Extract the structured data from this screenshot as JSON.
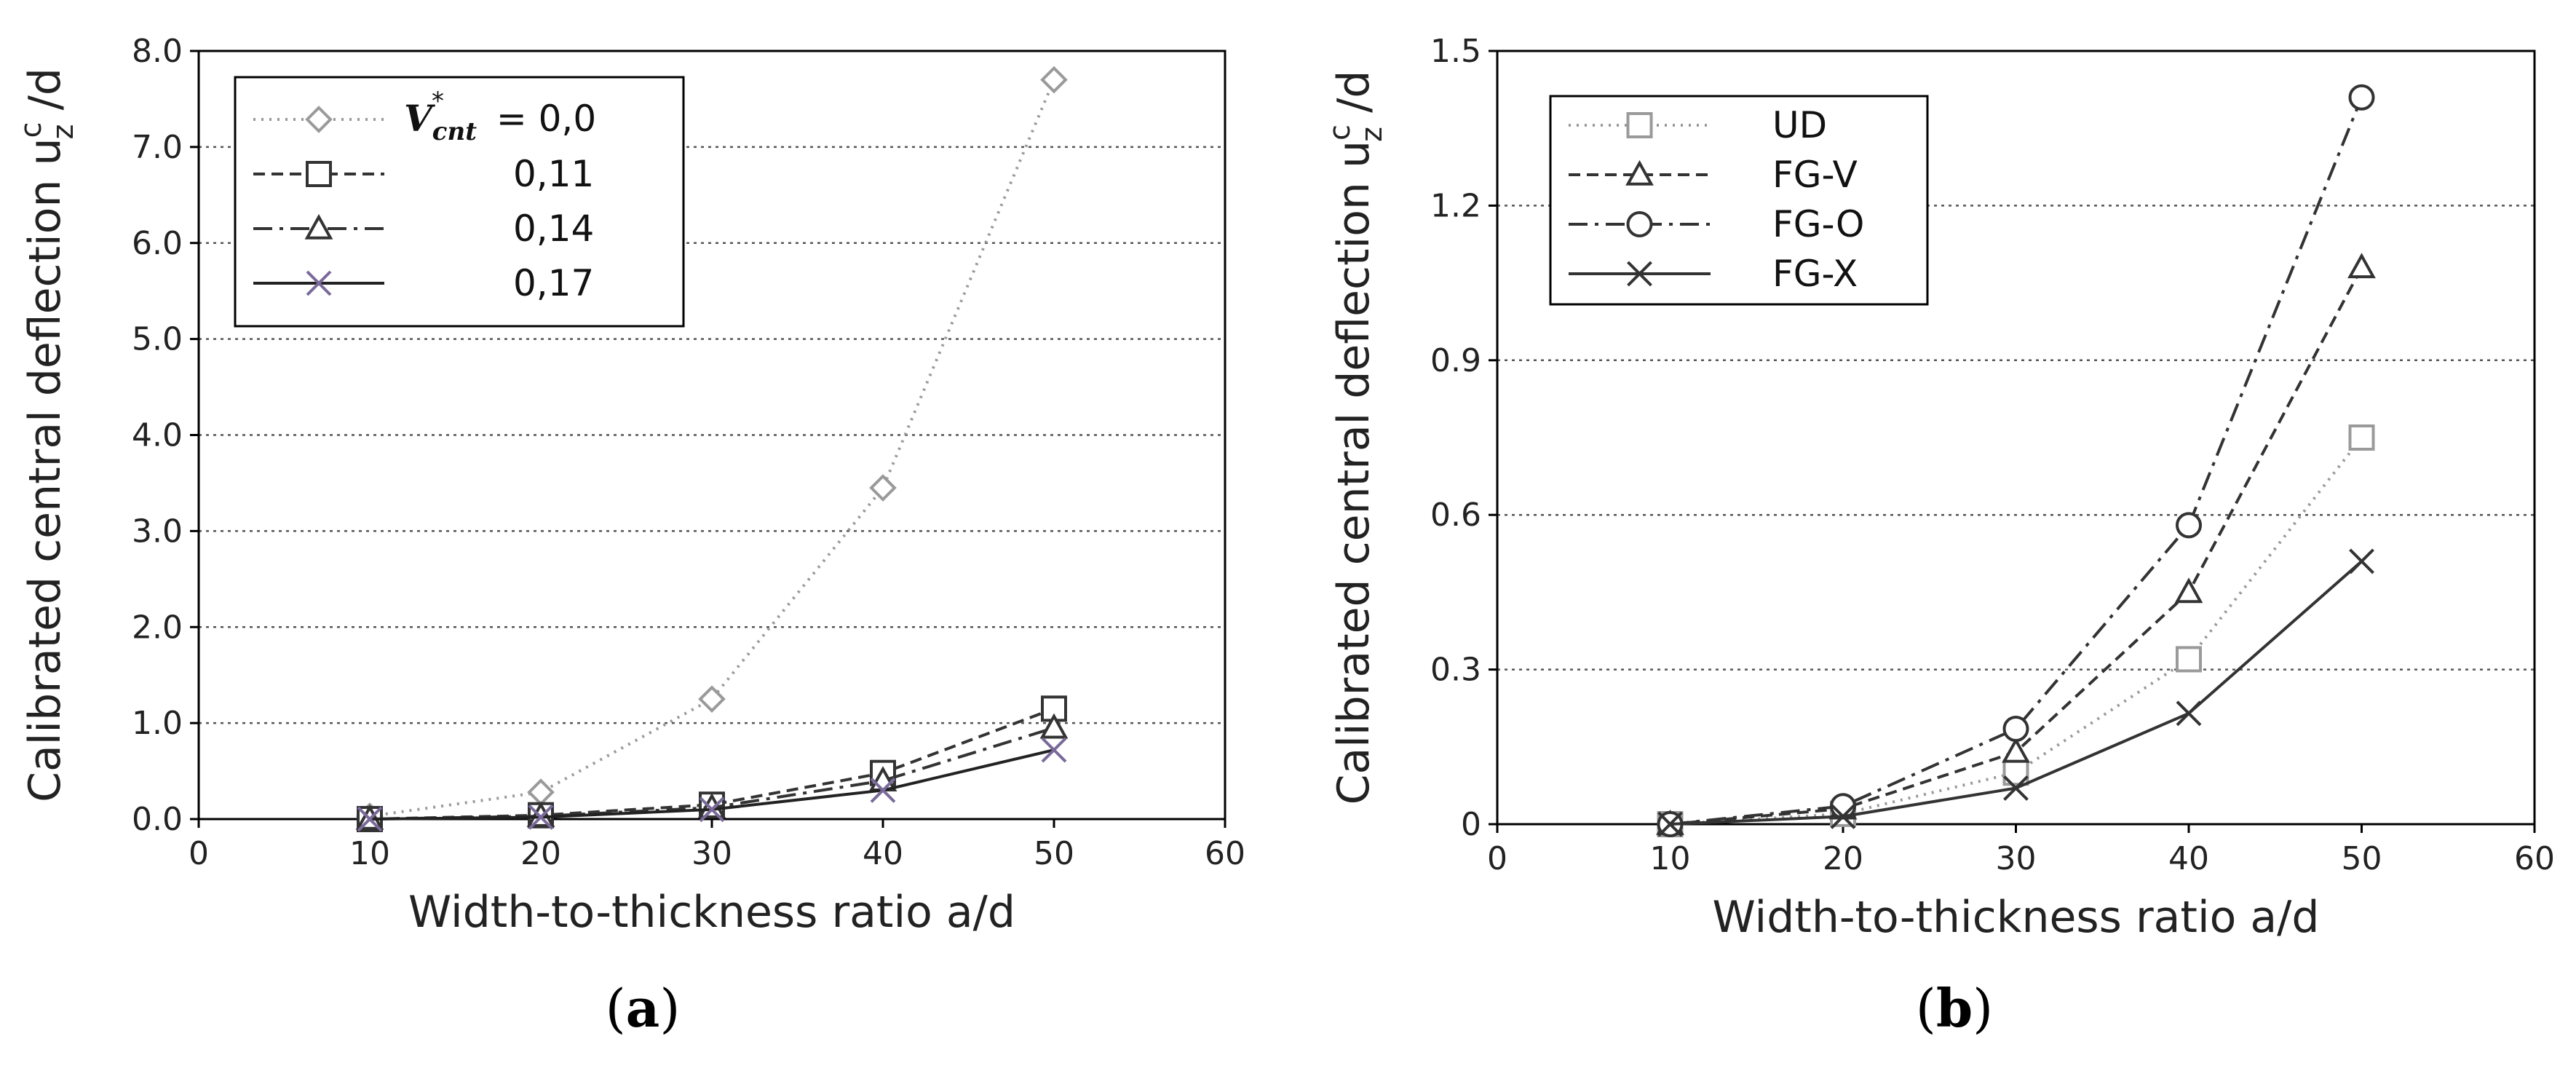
{
  "chart_data": [
    {
      "type": "line",
      "panel": "a",
      "xlabel": "Width-to-thickness ratio  a/d",
      "ylabel": "Calibrated central deflection",
      "ylabel_math": "u",
      "ylabel_sup": "c",
      "ylabel_sub": "z",
      "ylabel_tail": " /d",
      "xlim": [
        0,
        60
      ],
      "ylim": [
        0,
        8
      ],
      "xticks": [
        0,
        10,
        20,
        30,
        40,
        50,
        60
      ],
      "yticks": [
        0,
        1,
        2,
        3,
        4,
        5,
        6,
        7,
        8
      ],
      "ytick_labels": [
        "0.0",
        "1.0",
        "2.0",
        "3.0",
        "4.0",
        "5.0",
        "6.0",
        "7.0",
        "8.0"
      ],
      "grid": "horizontal",
      "legend_position": "top-left",
      "legend_var": "V",
      "legend_var_sub": "cnt",
      "legend_var_sup": "*",
      "x": [
        10,
        20,
        30,
        40,
        50
      ],
      "series": [
        {
          "name": "= 0,0",
          "marker": "diamond",
          "dash": "dotted",
          "color": "#9a9a9a",
          "values": [
            0.03,
            0.28,
            1.25,
            3.45,
            7.7
          ]
        },
        {
          "name": "0,11",
          "marker": "square",
          "dash": "dashed",
          "color": "#333333",
          "values": [
            0.0,
            0.04,
            0.15,
            0.48,
            1.15
          ]
        },
        {
          "name": "0,14",
          "marker": "triangle",
          "dash": "dashdot",
          "color": "#333333",
          "values": [
            0.0,
            0.03,
            0.12,
            0.4,
            0.95
          ]
        },
        {
          "name": "0,17",
          "marker": "x",
          "dash": "solid",
          "color": "#222222",
          "marker_color": "#7a6a9a",
          "values": [
            0.0,
            0.02,
            0.1,
            0.3,
            0.72
          ]
        }
      ]
    },
    {
      "type": "line",
      "panel": "b",
      "xlabel": "Width-to-thickness ratio  a/d",
      "ylabel": "Calibrated central deflection",
      "ylabel_math": "u",
      "ylabel_sup": "c",
      "ylabel_sub": "z",
      "ylabel_tail": " /d",
      "xlim": [
        0,
        60
      ],
      "ylim": [
        0,
        1.5
      ],
      "xticks": [
        0,
        10,
        20,
        30,
        40,
        50,
        60
      ],
      "yticks": [
        0,
        0.3,
        0.6,
        0.9,
        1.2,
        1.5
      ],
      "ytick_labels": [
        "0",
        "0.3",
        "0.6",
        "0.9",
        "1.2",
        "1.5"
      ],
      "grid": "horizontal",
      "legend_position": "top-left",
      "x": [
        10,
        20,
        30,
        40,
        50
      ],
      "series": [
        {
          "name": "UD",
          "marker": "square",
          "dash": "dotted",
          "color": "#9a9a9a",
          "values": [
            0.0,
            0.02,
            0.1,
            0.32,
            0.75
          ]
        },
        {
          "name": "FG-V",
          "marker": "triangle",
          "dash": "dashed",
          "color": "#333333",
          "values": [
            0.0,
            0.03,
            0.14,
            0.45,
            1.08
          ]
        },
        {
          "name": "FG-O",
          "marker": "circle",
          "dash": "dashdot",
          "color": "#333333",
          "values": [
            0.0,
            0.035,
            0.185,
            0.58,
            1.41
          ]
        },
        {
          "name": "FG-X",
          "marker": "x",
          "dash": "solid",
          "color": "#333333",
          "values": [
            0.0,
            0.015,
            0.07,
            0.215,
            0.51
          ]
        }
      ]
    }
  ],
  "captions": [
    "a",
    "b"
  ]
}
